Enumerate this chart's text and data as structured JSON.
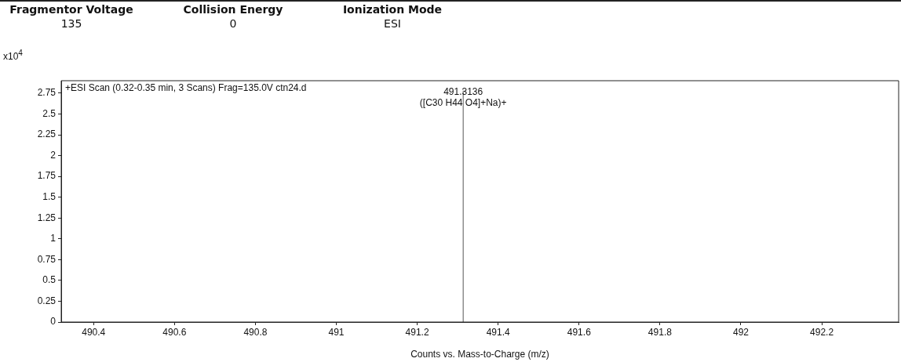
{
  "chart_data": {
    "type": "line",
    "title": "+ESI Scan (0.32-0.35 min, 3 Scans) Frag=135.0V ctn24.d",
    "xlabel": "Counts vs. Mass-to-Charge (m/z)",
    "ylabel": "x10$^{4}$",
    "annotations": [
      "Fragmentor Voltage",
      "135",
      "Collision Energy",
      "0",
      "Ionization Mode",
      "ESI",
      {
        "text": "491.3136",
        "x": 491.3136,
        "y": 2.78
      },
      {
        "text": "([C30 H44 O4]+Na)+",
        "x": 491.3136,
        "y": 2.78
      }
    ],
    "series": [
      {
        "x": [
          491.3136,
          491.3136
        ],
        "values": [
          0,
          2.78
        ],
        "color": "#555555"
      }
    ],
    "xlim": [
      490.32,
      492.39
    ],
    "xticks": [
      490.4,
      490.6,
      490.8,
      491,
      491.2,
      491.4,
      491.6,
      491.8,
      492,
      492.2
    ],
    "ylim": [
      0,
      2.9
    ],
    "yticks": [
      0,
      0.25,
      0.5,
      0.75,
      1,
      1.25,
      1.5,
      1.75,
      2,
      2.25,
      2.5,
      2.75
    ],
    "grid": false,
    "legend": false,
    "marker": "none",
    "line_style": "solid"
  }
}
